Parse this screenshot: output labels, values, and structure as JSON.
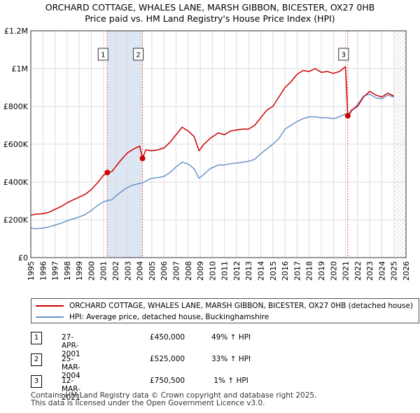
{
  "title_line1": "ORCHARD COTTAGE, WHALES LANE, MARSH GIBBON, BICESTER, OX27 0HB",
  "title_line2": "Price paid vs. HM Land Registry's House Price Index (HPI)",
  "colors": {
    "property": "#cc0000",
    "hpi": "#6a93c8",
    "band": "#dde6f3",
    "grid": "#dddddd"
  },
  "chart_data": {
    "type": "line",
    "xlim": [
      1995,
      2026
    ],
    "ylim": [
      0,
      1200000
    ],
    "y_ticks": [
      {
        "v": 0,
        "label": "£0"
      },
      {
        "v": 200000,
        "label": "£200K"
      },
      {
        "v": 400000,
        "label": "£400K"
      },
      {
        "v": 600000,
        "label": "£600K"
      },
      {
        "v": 800000,
        "label": "£800K"
      },
      {
        "v": 1000000,
        "label": "£1M"
      },
      {
        "v": 1200000,
        "label": "£1.2M"
      }
    ],
    "x_ticks": [
      "1995",
      "1996",
      "1997",
      "1998",
      "1999",
      "2000",
      "2001",
      "2002",
      "2003",
      "2004",
      "2005",
      "2006",
      "2007",
      "2008",
      "2009",
      "2010",
      "2011",
      "2012",
      "2013",
      "2014",
      "2015",
      "2016",
      "2017",
      "2018",
      "2019",
      "2020",
      "2021",
      "2022",
      "2023",
      "2024",
      "2025",
      "2026"
    ],
    "shaded_ranges": [
      [
        2001.32,
        2004.23
      ]
    ],
    "hatched_range": [
      2025.0,
      2026.0
    ],
    "series": [
      {
        "name": "ORCHARD COTTAGE, WHALES LANE, MARSH GIBBON, BICESTER, OX27 0HB (detached house)",
        "color": "#cc0000",
        "points": [
          [
            1995.0,
            225000
          ],
          [
            1995.5,
            230000
          ],
          [
            1996.0,
            232000
          ],
          [
            1996.5,
            240000
          ],
          [
            1997.0,
            255000
          ],
          [
            1997.5,
            270000
          ],
          [
            1998.0,
            290000
          ],
          [
            1998.5,
            305000
          ],
          [
            1999.0,
            320000
          ],
          [
            1999.5,
            335000
          ],
          [
            2000.0,
            360000
          ],
          [
            2000.5,
            395000
          ],
          [
            2001.0,
            435000
          ],
          [
            2001.32,
            450000
          ],
          [
            2001.7,
            455000
          ],
          [
            2002.0,
            480000
          ],
          [
            2002.5,
            520000
          ],
          [
            2003.0,
            555000
          ],
          [
            2003.5,
            575000
          ],
          [
            2004.0,
            590000
          ],
          [
            2004.23,
            525000
          ],
          [
            2004.5,
            570000
          ],
          [
            2005.0,
            565000
          ],
          [
            2005.5,
            570000
          ],
          [
            2006.0,
            580000
          ],
          [
            2006.5,
            610000
          ],
          [
            2007.0,
            650000
          ],
          [
            2007.5,
            690000
          ],
          [
            2008.0,
            670000
          ],
          [
            2008.5,
            640000
          ],
          [
            2008.9,
            565000
          ],
          [
            2009.3,
            600000
          ],
          [
            2009.8,
            630000
          ],
          [
            2010.5,
            660000
          ],
          [
            2011.0,
            650000
          ],
          [
            2011.5,
            670000
          ],
          [
            2012.0,
            675000
          ],
          [
            2012.5,
            680000
          ],
          [
            2013.0,
            680000
          ],
          [
            2013.5,
            700000
          ],
          [
            2014.0,
            740000
          ],
          [
            2014.5,
            780000
          ],
          [
            2015.0,
            800000
          ],
          [
            2015.5,
            850000
          ],
          [
            2016.0,
            900000
          ],
          [
            2016.5,
            930000
          ],
          [
            2017.0,
            970000
          ],
          [
            2017.5,
            990000
          ],
          [
            2018.0,
            985000
          ],
          [
            2018.5,
            1000000
          ],
          [
            2019.0,
            980000
          ],
          [
            2019.5,
            985000
          ],
          [
            2020.0,
            975000
          ],
          [
            2020.5,
            985000
          ],
          [
            2021.0,
            1010000
          ],
          [
            2021.1,
            880000
          ],
          [
            2021.19,
            750500
          ],
          [
            2021.5,
            780000
          ],
          [
            2022.0,
            800000
          ],
          [
            2022.5,
            850000
          ],
          [
            2023.0,
            880000
          ],
          [
            2023.5,
            860000
          ],
          [
            2024.0,
            850000
          ],
          [
            2024.5,
            870000
          ],
          [
            2025.0,
            855000
          ]
        ]
      },
      {
        "name": "HPI: Average price, detached house, Buckinghamshire",
        "color": "#6a93c8",
        "points": [
          [
            1995.0,
            155000
          ],
          [
            1995.5,
            153000
          ],
          [
            1996.0,
            156000
          ],
          [
            1996.5,
            162000
          ],
          [
            1997.0,
            172000
          ],
          [
            1997.5,
            182000
          ],
          [
            1998.0,
            195000
          ],
          [
            1998.5,
            205000
          ],
          [
            1999.0,
            215000
          ],
          [
            1999.5,
            228000
          ],
          [
            2000.0,
            250000
          ],
          [
            2000.5,
            275000
          ],
          [
            2001.0,
            295000
          ],
          [
            2001.32,
            302000
          ],
          [
            2001.7,
            305000
          ],
          [
            2002.0,
            325000
          ],
          [
            2002.5,
            350000
          ],
          [
            2003.0,
            372000
          ],
          [
            2003.5,
            385000
          ],
          [
            2004.0,
            393000
          ],
          [
            2004.23,
            395000
          ],
          [
            2004.5,
            405000
          ],
          [
            2005.0,
            420000
          ],
          [
            2005.5,
            423000
          ],
          [
            2006.0,
            430000
          ],
          [
            2006.5,
            450000
          ],
          [
            2007.0,
            480000
          ],
          [
            2007.5,
            505000
          ],
          [
            2008.0,
            495000
          ],
          [
            2008.5,
            470000
          ],
          [
            2008.9,
            420000
          ],
          [
            2009.3,
            440000
          ],
          [
            2009.8,
            470000
          ],
          [
            2010.5,
            490000
          ],
          [
            2011.0,
            490000
          ],
          [
            2011.5,
            497000
          ],
          [
            2012.0,
            500000
          ],
          [
            2012.5,
            505000
          ],
          [
            2013.0,
            510000
          ],
          [
            2013.5,
            520000
          ],
          [
            2014.0,
            550000
          ],
          [
            2014.5,
            575000
          ],
          [
            2015.0,
            600000
          ],
          [
            2015.5,
            630000
          ],
          [
            2016.0,
            680000
          ],
          [
            2016.5,
            700000
          ],
          [
            2017.0,
            720000
          ],
          [
            2017.5,
            735000
          ],
          [
            2018.0,
            745000
          ],
          [
            2018.5,
            745000
          ],
          [
            2019.0,
            740000
          ],
          [
            2019.5,
            740000
          ],
          [
            2020.0,
            735000
          ],
          [
            2020.5,
            745000
          ],
          [
            2021.0,
            760000
          ],
          [
            2021.19,
            743000
          ],
          [
            2021.5,
            775000
          ],
          [
            2022.0,
            810000
          ],
          [
            2022.5,
            855000
          ],
          [
            2023.0,
            865000
          ],
          [
            2023.5,
            845000
          ],
          [
            2024.0,
            840000
          ],
          [
            2024.5,
            860000
          ],
          [
            2025.0,
            850000
          ]
        ]
      }
    ],
    "sales": [
      {
        "n": "1",
        "x": 2001.32,
        "y": 450000
      },
      {
        "n": "2",
        "x": 2004.23,
        "y": 525000
      },
      {
        "n": "3",
        "x": 2021.19,
        "y": 750500
      }
    ]
  },
  "legend": {
    "property_label": "ORCHARD COTTAGE, WHALES LANE, MARSH GIBBON, BICESTER, OX27 0HB (detached house)",
    "hpi_label": "HPI: Average price, detached house, Buckinghamshire"
  },
  "sales_table": [
    {
      "n": "1",
      "date": "27-APR-2001",
      "price": "£450,000",
      "hpi": "49% ↑ HPI"
    },
    {
      "n": "2",
      "date": "25-MAR-2004",
      "price": "£525,000",
      "hpi": "33% ↑ HPI"
    },
    {
      "n": "3",
      "date": "12-MAR-2021",
      "price": "£750,500",
      "hpi": " 1% ↑ HPI"
    }
  ],
  "footer_line1": "Contains HM Land Registry data © Crown copyright and database right 2025.",
  "footer_line2": "This data is licensed under the Open Government Licence v3.0."
}
